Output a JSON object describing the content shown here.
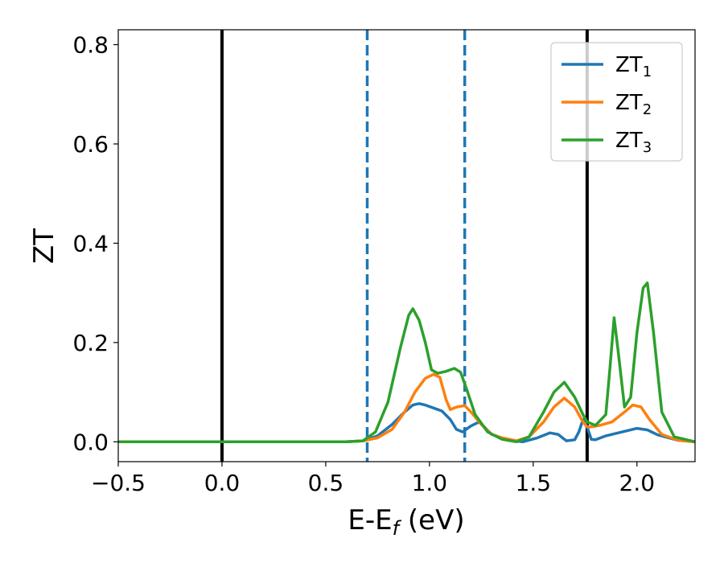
{
  "chart_data": {
    "type": "line",
    "xlabel": "E-E_f (eV)",
    "ylabel": "ZT",
    "xlim": [
      -0.5,
      2.28
    ],
    "ylim": [
      -0.04,
      0.83
    ],
    "xticks": [
      -0.5,
      0.0,
      0.5,
      1.0,
      1.5,
      2.0
    ],
    "xtick_labels": [
      "−0.5",
      "0.0",
      "0.5",
      "1.0",
      "1.5",
      "2.0"
    ],
    "yticks": [
      0.0,
      0.2,
      0.4,
      0.6,
      0.8
    ],
    "ytick_labels": [
      "0.0",
      "0.2",
      "0.4",
      "0.6",
      "0.8"
    ],
    "grid": false,
    "legend_position": "top-right",
    "vertical_lines": [
      {
        "x": 0.0,
        "style": "solid",
        "color": "#000000"
      },
      {
        "x": 1.76,
        "style": "solid",
        "color": "#000000"
      },
      {
        "x": 0.7,
        "style": "dashed",
        "color": "#1f77b4"
      },
      {
        "x": 1.17,
        "style": "dashed",
        "color": "#1f77b4"
      }
    ],
    "series": [
      {
        "name": "ZT1",
        "name_main": "ZT",
        "name_sub": "1",
        "color": "#1f77b4",
        "x": [
          -0.5,
          0.6,
          0.68,
          0.75,
          0.82,
          0.88,
          0.92,
          0.95,
          0.98,
          1.02,
          1.06,
          1.1,
          1.13,
          1.16,
          1.2,
          1.24,
          1.3,
          1.38,
          1.45,
          1.52,
          1.58,
          1.62,
          1.66,
          1.7,
          1.72,
          1.74,
          1.76,
          1.78,
          1.8,
          1.85,
          1.9,
          1.95,
          2.0,
          2.05,
          2.1,
          2.2,
          2.28
        ],
        "y": [
          0.0,
          0.0,
          0.002,
          0.012,
          0.035,
          0.06,
          0.074,
          0.077,
          0.074,
          0.068,
          0.062,
          0.045,
          0.025,
          0.02,
          0.032,
          0.04,
          0.015,
          0.003,
          0.0,
          0.008,
          0.018,
          0.015,
          0.002,
          0.004,
          0.02,
          0.045,
          0.03,
          0.005,
          0.004,
          0.012,
          0.017,
          0.022,
          0.027,
          0.024,
          0.014,
          0.003,
          0.0
        ]
      },
      {
        "name": "ZT2",
        "name_main": "ZT",
        "name_sub": "2",
        "color": "#ff7f0e",
        "x": [
          -0.5,
          0.6,
          0.68,
          0.75,
          0.82,
          0.88,
          0.93,
          0.98,
          1.02,
          1.05,
          1.08,
          1.1,
          1.13,
          1.17,
          1.2,
          1.25,
          1.3,
          1.35,
          1.42,
          1.48,
          1.55,
          1.6,
          1.65,
          1.7,
          1.74,
          1.76,
          1.78,
          1.82,
          1.88,
          1.94,
          1.98,
          2.02,
          2.06,
          2.12,
          2.2,
          2.28
        ],
        "y": [
          0.0,
          0.0,
          0.002,
          0.008,
          0.025,
          0.06,
          0.1,
          0.128,
          0.136,
          0.13,
          0.085,
          0.065,
          0.07,
          0.073,
          0.06,
          0.035,
          0.015,
          0.008,
          0.002,
          0.01,
          0.04,
          0.07,
          0.088,
          0.07,
          0.04,
          0.03,
          0.03,
          0.033,
          0.04,
          0.06,
          0.074,
          0.07,
          0.045,
          0.015,
          0.003,
          0.0
        ]
      },
      {
        "name": "ZT3",
        "name_main": "ZT",
        "name_sub": "3",
        "color": "#2ca02c",
        "x": [
          -0.5,
          0.6,
          0.68,
          0.74,
          0.8,
          0.86,
          0.9,
          0.92,
          0.95,
          0.98,
          1.01,
          1.04,
          1.08,
          1.12,
          1.15,
          1.18,
          1.22,
          1.28,
          1.35,
          1.42,
          1.48,
          1.55,
          1.6,
          1.65,
          1.7,
          1.74,
          1.76,
          1.8,
          1.85,
          1.87,
          1.89,
          1.91,
          1.94,
          1.97,
          2.0,
          2.03,
          2.05,
          2.08,
          2.12,
          2.18,
          2.28
        ],
        "y": [
          0.0,
          0.0,
          0.002,
          0.02,
          0.08,
          0.19,
          0.255,
          0.268,
          0.245,
          0.2,
          0.145,
          0.138,
          0.142,
          0.148,
          0.14,
          0.105,
          0.055,
          0.02,
          0.005,
          0.0,
          0.01,
          0.06,
          0.1,
          0.12,
          0.09,
          0.055,
          0.04,
          0.033,
          0.055,
          0.15,
          0.25,
          0.18,
          0.07,
          0.09,
          0.22,
          0.31,
          0.32,
          0.22,
          0.06,
          0.01,
          0.0
        ]
      }
    ]
  }
}
